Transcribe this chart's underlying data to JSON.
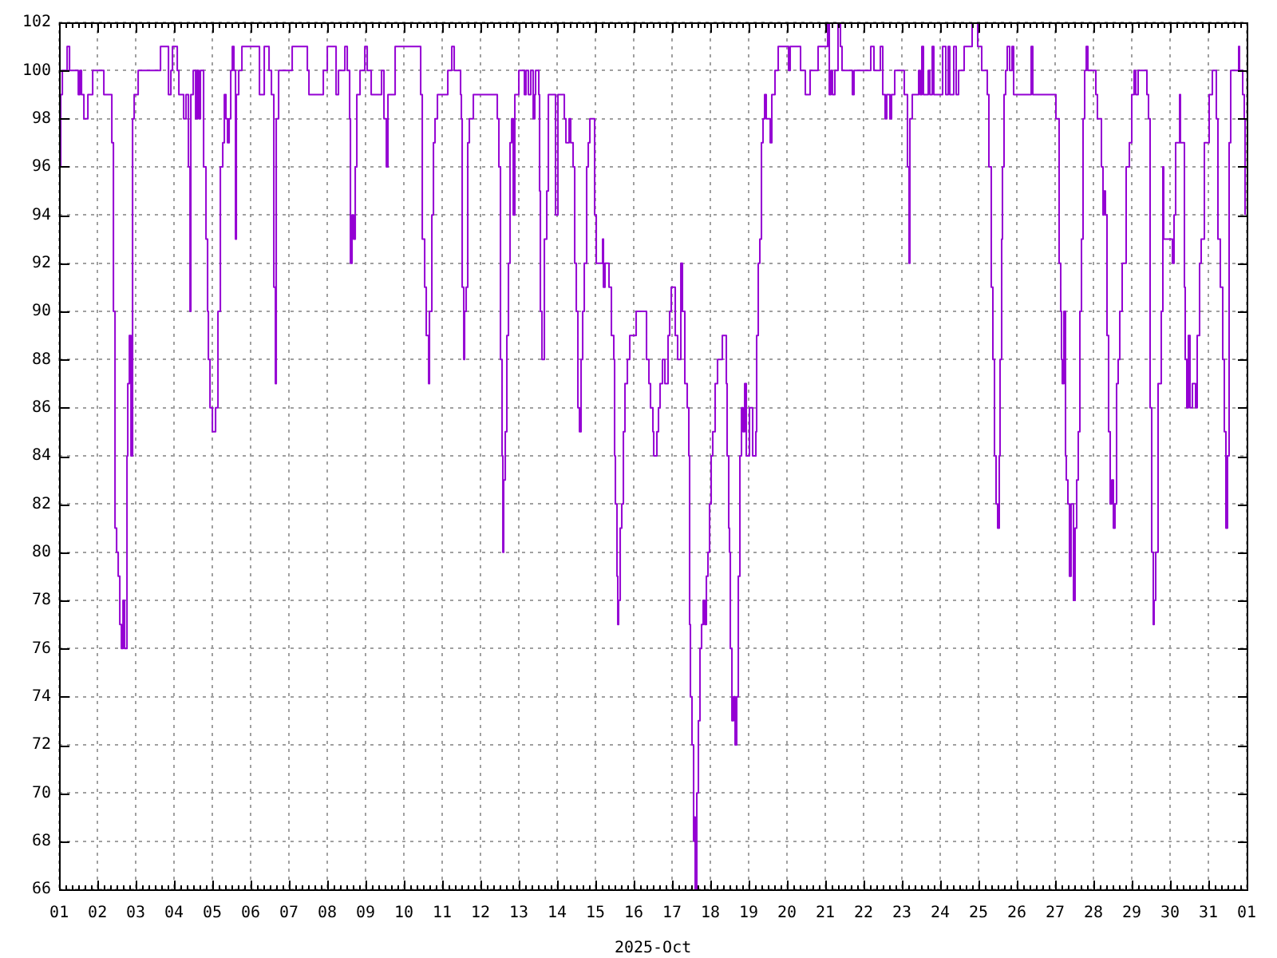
{
  "chart_data": {
    "type": "step",
    "xlabel": "2025-Oct",
    "color": "#9400d3",
    "x": [
      "2025-10-01T00:00",
      "2025-10-01T01:00",
      "2025-10-01T02:00",
      "2025-10-01T05:00",
      "2025-10-01T06:30",
      "2025-10-01T12:00",
      "2025-10-01T13:00",
      "2025-10-01T14:00",
      "2025-10-01T15:30",
      "2025-10-01T18:00",
      "2025-10-01T21:00",
      "2025-10-02T04:00",
      "2025-10-02T09:00",
      "2025-10-02T10:00",
      "2025-10-02T11:00",
      "2025-10-02T12:00",
      "2025-10-02T13:00",
      "2025-10-02T14:00",
      "2025-10-02T15:00",
      "2025-10-02T16:00",
      "2025-10-02T17:00",
      "2025-10-02T18:30",
      "2025-10-02T19:00",
      "2025-10-02T20:00",
      "2025-10-02T21:00",
      "2025-10-02T22:00",
      "2025-10-02T23:00",
      "2025-10-03T01:30",
      "2025-10-03T15:30",
      "2025-10-03T20:30",
      "2025-10-03T22:00",
      "2025-10-03T23:00",
      "2025-10-04T02:00",
      "2025-10-04T03:00",
      "2025-10-04T06:00",
      "2025-10-04T07:30",
      "2025-10-04T09:00",
      "2025-10-04T10:00",
      "2025-10-04T10:30",
      "2025-10-04T12:00",
      "2025-10-04T13:30",
      "2025-10-04T14:30",
      "2025-10-04T15:30",
      "2025-10-04T16:30",
      "2025-10-04T18:30",
      "2025-10-04T20:00",
      "2025-10-04T21:00",
      "2025-10-04T21:30",
      "2025-10-04T22:30",
      "2025-10-05T00:00",
      "2025-10-05T02:00",
      "2025-10-05T03:30",
      "2025-10-05T05:00",
      "2025-10-05T06:30",
      "2025-10-05T07:30",
      "2025-10-05T08:30",
      "2025-10-05T09:30",
      "2025-10-05T10:30",
      "2025-10-05T11:30",
      "2025-10-05T12:30",
      "2025-10-05T13:30",
      "2025-10-05T14:30",
      "2025-10-05T15:00",
      "2025-10-05T16:30",
      "2025-10-05T18:30",
      "2025-10-06T05:30",
      "2025-10-06T08:30",
      "2025-10-06T11:30",
      "2025-10-06T13:00",
      "2025-10-06T14:30",
      "2025-10-06T15:30",
      "2025-10-06T16:00",
      "2025-10-06T17:30",
      "2025-10-07T02:00",
      "2025-10-07T11:30",
      "2025-10-07T12:30",
      "2025-10-07T21:30",
      "2025-10-08T00:00",
      "2025-10-08T05:30",
      "2025-10-08T07:00",
      "2025-10-08T11:00",
      "2025-10-08T12:30",
      "2025-10-08T14:00",
      "2025-10-08T14:30",
      "2025-10-08T15:30",
      "2025-10-08T16:30",
      "2025-10-08T17:30",
      "2025-10-08T18:30",
      "2025-10-08T20:30",
      "2025-10-08T23:30",
      "2025-10-09T01:00",
      "2025-10-09T03:30",
      "2025-10-09T10:00",
      "2025-10-09T11:30",
      "2025-10-09T13:00",
      "2025-10-09T14:00",
      "2025-10-09T18:30",
      "2025-10-10T10:30",
      "2025-10-10T11:30",
      "2025-10-10T13:00",
      "2025-10-10T14:00",
      "2025-10-10T15:30",
      "2025-10-10T16:00",
      "2025-10-10T17:30",
      "2025-10-10T18:30",
      "2025-10-10T19:30",
      "2025-10-10T21:00",
      "2025-10-11T03:30",
      "2025-10-11T06:00",
      "2025-10-11T07:30",
      "2025-10-11T11:30",
      "2025-10-11T12:00",
      "2025-10-11T12:30",
      "2025-10-11T13:30",
      "2025-10-11T14:00",
      "2025-10-11T15:00",
      "2025-10-11T16:00",
      "2025-10-11T17:00",
      "2025-10-11T19:30",
      "2025-10-12T10:30",
      "2025-10-12T11:30",
      "2025-10-12T12:30",
      "2025-10-12T13:30",
      "2025-10-12T14:00",
      "2025-10-12T14:30",
      "2025-10-12T15:30",
      "2025-10-12T16:30",
      "2025-10-12T17:30",
      "2025-10-12T18:30",
      "2025-10-12T19:30",
      "2025-10-12T20:30",
      "2025-10-12T21:30",
      "2025-10-13T00:00",
      "2025-10-13T03:30",
      "2025-10-13T04:30",
      "2025-10-13T06:00",
      "2025-10-13T07:30",
      "2025-10-13T09:00",
      "2025-10-13T10:00",
      "2025-10-13T10:30",
      "2025-10-13T12:30",
      "2025-10-13T13:00",
      "2025-10-13T13:30",
      "2025-10-13T14:30",
      "2025-10-13T16:00",
      "2025-10-13T17:30",
      "2025-10-13T18:30",
      "2025-10-13T23:00",
      "2025-10-14T00:30",
      "2025-10-14T04:30",
      "2025-10-14T05:30",
      "2025-10-14T07:30",
      "2025-10-14T08:30",
      "2025-10-14T10:00",
      "2025-10-14T11:00",
      "2025-10-14T12:00",
      "2025-10-14T13:00",
      "2025-10-14T14:00",
      "2025-10-14T15:00",
      "2025-10-14T16:00",
      "2025-10-14T17:00",
      "2025-10-14T18:30",
      "2025-10-14T19:30",
      "2025-10-14T20:30",
      "2025-10-14T23:30",
      "2025-10-15T00:30",
      "2025-10-15T04:30",
      "2025-10-15T05:00",
      "2025-10-15T06:00",
      "2025-10-15T08:30",
      "2025-10-15T10:00",
      "2025-10-15T11:30",
      "2025-10-15T12:00",
      "2025-10-15T12:30",
      "2025-10-15T13:30",
      "2025-10-15T14:00",
      "2025-10-15T14:30",
      "2025-10-15T15:30",
      "2025-10-15T16:30",
      "2025-10-15T17:30",
      "2025-10-15T18:30",
      "2025-10-15T20:00",
      "2025-10-15T21:30",
      "2025-10-16T01:30",
      "2025-10-16T08:00",
      "2025-10-16T09:30",
      "2025-10-16T10:30",
      "2025-10-16T12:00",
      "2025-10-16T12:30",
      "2025-10-16T14:30",
      "2025-10-16T15:30",
      "2025-10-16T16:30",
      "2025-10-16T18:00",
      "2025-10-16T19:30",
      "2025-10-16T21:30",
      "2025-10-16T22:30",
      "2025-10-16T23:30",
      "2025-10-17T02:00",
      "2025-10-17T03:30",
      "2025-10-17T05:30",
      "2025-10-17T06:30",
      "2025-10-17T08:00",
      "2025-10-17T09:30",
      "2025-10-17T10:30",
      "2025-10-17T11:00",
      "2025-10-17T11:30",
      "2025-10-17T12:30",
      "2025-10-17T13:30",
      "2025-10-17T14:00",
      "2025-10-17T14:30",
      "2025-10-17T15:30",
      "2025-10-17T16:30",
      "2025-10-17T17:30",
      "2025-10-17T18:30",
      "2025-10-17T19:30",
      "2025-10-17T20:30",
      "2025-10-17T21:30",
      "2025-10-17T22:30",
      "2025-10-17T23:30",
      "2025-10-18T00:30",
      "2025-10-18T01:30",
      "2025-10-18T03:00",
      "2025-10-18T04:30",
      "2025-10-18T07:30",
      "2025-10-18T10:00",
      "2025-10-18T10:30",
      "2025-10-18T11:30",
      "2025-10-18T12:00",
      "2025-10-18T12:30",
      "2025-10-18T13:30",
      "2025-10-18T14:30",
      "2025-10-18T15:30",
      "2025-10-18T16:30",
      "2025-10-18T17:30",
      "2025-10-18T18:30",
      "2025-10-18T19:30",
      "2025-10-18T20:30",
      "2025-10-18T21:30",
      "2025-10-18T22:30",
      "2025-10-19T00:30",
      "2025-10-19T02:30",
      "2025-10-19T04:30",
      "2025-10-19T05:00",
      "2025-10-19T06:00",
      "2025-10-19T07:00",
      "2025-10-19T08:00",
      "2025-10-19T09:00",
      "2025-10-19T10:00",
      "2025-10-19T11:00",
      "2025-10-19T13:30",
      "2025-10-19T14:30",
      "2025-10-19T16:30",
      "2025-10-19T18:30",
      "2025-10-20T01:00",
      "2025-10-20T02:00",
      "2025-10-20T08:30",
      "2025-10-20T11:30",
      "2025-10-20T14:30",
      "2025-10-20T19:30",
      "2025-10-21T01:30",
      "2025-10-21T02:30",
      "2025-10-21T03:30",
      "2025-10-21T04:30",
      "2025-10-21T06:00",
      "2025-10-21T08:00",
      "2025-10-21T09:30",
      "2025-10-21T10:30",
      "2025-10-21T17:00",
      "2025-10-21T18:00",
      "2025-10-22T04:30",
      "2025-10-22T06:30",
      "2025-10-22T10:30",
      "2025-10-22T12:00",
      "2025-10-22T13:30",
      "2025-10-22T14:30",
      "2025-10-22T16:30",
      "2025-10-22T17:30",
      "2025-10-22T19:30",
      "2025-10-23T01:30",
      "2025-10-23T03:30",
      "2025-10-23T04:30",
      "2025-10-23T05:00",
      "2025-10-23T06:30",
      "2025-10-23T10:30",
      "2025-10-23T11:30",
      "2025-10-23T12:30",
      "2025-10-23T13:30",
      "2025-10-23T16:30",
      "2025-10-23T17:30",
      "2025-10-23T19:00",
      "2025-10-23T20:00",
      "2025-10-24T01:30",
      "2025-10-24T03:30",
      "2025-10-24T05:00",
      "2025-10-24T06:00",
      "2025-10-24T08:30",
      "2025-10-24T10:00",
      "2025-10-24T11:30",
      "2025-10-24T15:00",
      "2025-10-24T20:00",
      "2025-10-24T23:30",
      "2025-10-25T02:00",
      "2025-10-25T05:30",
      "2025-10-25T06:30",
      "2025-10-25T08:00",
      "2025-10-25T09:00",
      "2025-10-25T10:00",
      "2025-10-25T11:00",
      "2025-10-25T12:00",
      "2025-10-25T13:00",
      "2025-10-25T13:30",
      "2025-10-25T14:30",
      "2025-10-25T15:00",
      "2025-10-25T16:00",
      "2025-10-25T17:00",
      "2025-10-25T18:00",
      "2025-10-25T19:30",
      "2025-10-25T21:00",
      "2025-10-25T22:00",
      "2025-10-26T09:00",
      "2025-10-26T10:00",
      "2025-10-27T00:30",
      "2025-10-27T02:30",
      "2025-10-27T03:30",
      "2025-10-27T04:00",
      "2025-10-27T04:30",
      "2025-10-27T05:30",
      "2025-10-27T06:30",
      "2025-10-27T07:00",
      "2025-10-27T08:00",
      "2025-10-27T09:00",
      "2025-10-27T10:00",
      "2025-10-27T11:30",
      "2025-10-27T12:30",
      "2025-10-27T13:30",
      "2025-10-27T14:30",
      "2025-10-27T15:30",
      "2025-10-27T16:30",
      "2025-10-27T17:30",
      "2025-10-27T18:30",
      "2025-10-27T19:30",
      "2025-10-27T20:30",
      "2025-10-28T01:30",
      "2025-10-28T02:30",
      "2025-10-28T05:00",
      "2025-10-28T06:00",
      "2025-10-28T06:30",
      "2025-10-28T07:30",
      "2025-10-28T08:30",
      "2025-10-28T09:30",
      "2025-10-28T10:30",
      "2025-10-28T11:30",
      "2025-10-28T12:30",
      "2025-10-28T13:30",
      "2025-10-28T14:30",
      "2025-10-28T15:30",
      "2025-10-28T16:30",
      "2025-10-28T18:00",
      "2025-10-28T20:30",
      "2025-10-28T22:30",
      "2025-10-29T00:00",
      "2025-10-29T01:30",
      "2025-10-29T02:30",
      "2025-10-29T04:00",
      "2025-10-29T09:30",
      "2025-10-29T10:30",
      "2025-10-29T11:30",
      "2025-10-29T12:30",
      "2025-10-29T13:30",
      "2025-10-29T14:00",
      "2025-10-29T15:00",
      "2025-10-29T16:30",
      "2025-10-29T18:30",
      "2025-10-29T19:30",
      "2025-10-29T20:00",
      "2025-10-30T01:30",
      "2025-10-30T02:30",
      "2025-10-30T03:30",
      "2025-10-30T06:00",
      "2025-10-30T06:30",
      "2025-10-30T09:00",
      "2025-10-30T09:30",
      "2025-10-30T10:30",
      "2025-10-30T11:30",
      "2025-10-30T12:30",
      "2025-10-30T14:00",
      "2025-10-30T16:00",
      "2025-10-30T17:00",
      "2025-10-30T18:30",
      "2025-10-30T19:30",
      "2025-10-30T21:30",
      "2025-10-31T00:30",
      "2025-10-31T02:30",
      "2025-10-31T05:00",
      "2025-10-31T06:00",
      "2025-10-31T07:30",
      "2025-10-31T09:00",
      "2025-10-31T10:00",
      "2025-10-31T11:00",
      "2025-10-31T12:00",
      "2025-10-31T13:00",
      "2025-10-31T14:00",
      "2025-10-31T19:00",
      "2025-10-31T19:30",
      "2025-10-31T21:30",
      "2025-10-31T22:30",
      "2025-10-31T23:00"
    ],
    "values": [
      96,
      99,
      100,
      101,
      100,
      99,
      100,
      99,
      98,
      99,
      100,
      99,
      97,
      90,
      81,
      80,
      79,
      77,
      76,
      78,
      76,
      84,
      87,
      89,
      84,
      98,
      99,
      100,
      101,
      99,
      100,
      101,
      100,
      99,
      98,
      99,
      96,
      90,
      99,
      100,
      98,
      100,
      98,
      100,
      96,
      93,
      90,
      88,
      86,
      85,
      86,
      90,
      96,
      97,
      99,
      98,
      97,
      98,
      100,
      101,
      100,
      93,
      99,
      100,
      101,
      99,
      101,
      100,
      99,
      91,
      87,
      98,
      100,
      101,
      100,
      99,
      100,
      101,
      99,
      100,
      101,
      100,
      98,
      92,
      94,
      93,
      96,
      99,
      100,
      101,
      100,
      99,
      100,
      98,
      96,
      99,
      101,
      99,
      93,
      91,
      89,
      87,
      90,
      94,
      97,
      98,
      99,
      100,
      101,
      100,
      99,
      98,
      91,
      88,
      90,
      91,
      97,
      98,
      99,
      98,
      96,
      88,
      84,
      80,
      83,
      85,
      89,
      92,
      97,
      98,
      94,
      99,
      100,
      99,
      100,
      99,
      100,
      98,
      99,
      100,
      99,
      95,
      90,
      88,
      93,
      95,
      99,
      94,
      99,
      98,
      97,
      98,
      97,
      96,
      92,
      90,
      86,
      85,
      88,
      90,
      92,
      96,
      97,
      98,
      94,
      92,
      93,
      91,
      92,
      91,
      89,
      88,
      84,
      82,
      79,
      77,
      78,
      81,
      82,
      85,
      87,
      88,
      89,
      90,
      88,
      87,
      86,
      85,
      84,
      85,
      86,
      87,
      88,
      87,
      89,
      90,
      91,
      89,
      88,
      92,
      90,
      87,
      86,
      84,
      77,
      74,
      72,
      68,
      69,
      66,
      70,
      73,
      76,
      77,
      78,
      77,
      79,
      80,
      82,
      84,
      85,
      87,
      88,
      89,
      87,
      84,
      81,
      80,
      76,
      73,
      74,
      72,
      74,
      79,
      84,
      86,
      85,
      87,
      84,
      86,
      84,
      85,
      89,
      92,
      93,
      97,
      98,
      99,
      98,
      97,
      99,
      100,
      101,
      100,
      101,
      100,
      99,
      100,
      101,
      102,
      99,
      100,
      99,
      100,
      102,
      101,
      100,
      99,
      100,
      101,
      100,
      101,
      99,
      98,
      99,
      98,
      99,
      100,
      99,
      96,
      92,
      98,
      99,
      100,
      99,
      101,
      99,
      100,
      99,
      101,
      99,
      101,
      99,
      101,
      99,
      101,
      99,
      100,
      101,
      102,
      101,
      100,
      99,
      96,
      91,
      88,
      84,
      82,
      81,
      84,
      88,
      93,
      96,
      99,
      100,
      101,
      100,
      101,
      99,
      101,
      99,
      98,
      92,
      90,
      88,
      87,
      90,
      84,
      83,
      82,
      79,
      82,
      78,
      81,
      83,
      85,
      90,
      93,
      98,
      100,
      101,
      100,
      99,
      98,
      96,
      94,
      95,
      94,
      89,
      85,
      82,
      83,
      81,
      82,
      87,
      88,
      90,
      92,
      96,
      97,
      99,
      100,
      99,
      100,
      99,
      98,
      86,
      80,
      77,
      78,
      80,
      87,
      90,
      96,
      93,
      92,
      94,
      97,
      99,
      97,
      91,
      88,
      86,
      89,
      86,
      87,
      86,
      89,
      92,
      93,
      97,
      99,
      100,
      98,
      93,
      91,
      88,
      85,
      81,
      84,
      97,
      100,
      101,
      100,
      99,
      98,
      94
    ],
    "xlim": [
      "2025-10-01",
      "2025-11-01"
    ],
    "xticks": [
      {
        "value": "2025-10-01",
        "label": "01"
      },
      {
        "value": "2025-10-01T04:00",
        "label": null
      },
      {
        "value": "2025-10-01T08:00",
        "label": null
      },
      {
        "value": "2025-10-01T12:00",
        "label": null
      },
      {
        "value": "2025-10-01T16:00",
        "label": null
      },
      {
        "value": "2025-10-01T20:00",
        "label": null
      },
      {
        "value": "2025-10-02",
        "label": "02"
      },
      {
        "value": "2025-10-02T04:00",
        "label": null
      },
      {
        "value": "2025-10-02T08:00",
        "label": null
      },
      {
        "value": "2025-10-02T12:00",
        "label": null
      },
      {
        "value": "2025-10-02T16:00",
        "label": null
      },
      {
        "value": "2025-10-02T20:00",
        "label": null
      },
      {
        "value": "2025-10-03",
        "label": "03"
      },
      {
        "value": "2025-10-03T04:00",
        "label": null
      },
      {
        "value": "2025-10-03T08:00",
        "label": null
      },
      {
        "value": "2025-10-03T12:00",
        "label": null
      },
      {
        "value": "2025-10-03T16:00",
        "label": null
      },
      {
        "value": "2025-10-03T20:00",
        "label": null
      },
      {
        "value": "2025-10-04",
        "label": "04"
      },
      {
        "value": "2025-10-04T04:00",
        "label": null
      },
      {
        "value": "2025-10-04T08:00",
        "label": null
      },
      {
        "value": "2025-10-04T12:00",
        "label": null
      },
      {
        "value": "2025-10-04T16:00",
        "label": null
      },
      {
        "value": "2025-10-04T20:00",
        "label": null
      },
      {
        "value": "2025-10-05",
        "label": "05"
      },
      {
        "value": "2025-10-05T04:00",
        "label": null
      },
      {
        "value": "2025-10-05T08:00",
        "label": null
      },
      {
        "value": "2025-10-05T12:00",
        "label": null
      },
      {
        "value": "2025-10-05T16:00",
        "label": null
      },
      {
        "value": "2025-10-05T20:00",
        "label": null
      },
      {
        "value": "2025-10-06",
        "label": "06"
      },
      {
        "value": "2025-10-06T04:00",
        "label": null
      },
      {
        "value": "2025-10-06T08:00",
        "label": null
      },
      {
        "value": "2025-10-06T12:00",
        "label": null
      },
      {
        "value": "2025-10-06T16:00",
        "label": null
      },
      {
        "value": "2025-10-06T20:00",
        "label": null
      },
      {
        "value": "2025-10-07",
        "label": "07"
      },
      {
        "value": "2025-10-07T04:00",
        "label": null
      },
      {
        "value": "2025-10-07T08:00",
        "label": null
      },
      {
        "value": "2025-10-07T12:00",
        "label": null
      },
      {
        "value": "2025-10-07T16:00",
        "label": null
      },
      {
        "value": "2025-10-07T20:00",
        "label": null
      },
      {
        "value": "2025-10-08",
        "label": "08"
      },
      {
        "value": "2025-10-08T04:00",
        "label": null
      },
      {
        "value": "2025-10-08T08:00",
        "label": null
      },
      {
        "value": "2025-10-08T12:00",
        "label": null
      },
      {
        "value": "2025-10-08T16:00",
        "label": null
      },
      {
        "value": "2025-10-08T20:00",
        "label": null
      },
      {
        "value": "2025-10-09",
        "label": "09"
      },
      {
        "value": "2025-10-09T04:00",
        "label": null
      },
      {
        "value": "2025-10-09T08:00",
        "label": null
      },
      {
        "value": "2025-10-09T12:00",
        "label": null
      },
      {
        "value": "2025-10-09T16:00",
        "label": null
      },
      {
        "value": "2025-10-09T20:00",
        "label": null
      },
      {
        "value": "2025-10-10",
        "label": "10"
      },
      {
        "value": "2025-10-10T04:00",
        "label": null
      },
      {
        "value": "2025-10-10T08:00",
        "label": null
      },
      {
        "value": "2025-10-10T12:00",
        "label": null
      },
      {
        "value": "2025-10-10T16:00",
        "label": null
      },
      {
        "value": "2025-10-10T20:00",
        "label": null
      },
      {
        "value": "2025-10-11",
        "label": "11"
      },
      {
        "value": "2025-10-11T04:00",
        "label": null
      },
      {
        "value": "2025-10-11T08:00",
        "label": null
      },
      {
        "value": "2025-10-11T12:00",
        "label": null
      },
      {
        "value": "2025-10-11T16:00",
        "label": null
      },
      {
        "value": "2025-10-11T20:00",
        "label": null
      },
      {
        "value": "2025-10-12",
        "label": "12"
      },
      {
        "value": "2025-10-12T04:00",
        "label": null
      },
      {
        "value": "2025-10-12T08:00",
        "label": null
      },
      {
        "value": "2025-10-12T12:00",
        "label": null
      },
      {
        "value": "2025-10-12T16:00",
        "label": null
      },
      {
        "value": "2025-10-12T20:00",
        "label": null
      },
      {
        "value": "2025-10-13",
        "label": "13"
      },
      {
        "value": "2025-10-13T04:00",
        "label": null
      },
      {
        "value": "2025-10-13T08:00",
        "label": null
      },
      {
        "value": "2025-10-13T12:00",
        "label": null
      },
      {
        "value": "2025-10-13T16:00",
        "label": null
      },
      {
        "value": "2025-10-13T20:00",
        "label": null
      },
      {
        "value": "2025-10-14",
        "label": "14"
      },
      {
        "value": "2025-10-14T04:00",
        "label": null
      },
      {
        "value": "2025-10-14T08:00",
        "label": null
      },
      {
        "value": "2025-10-14T12:00",
        "label": null
      },
      {
        "value": "2025-10-14T16:00",
        "label": null
      },
      {
        "value": "2025-10-14T20:00",
        "label": null
      },
      {
        "value": "2025-10-15",
        "label": "15"
      },
      {
        "value": "2025-10-15T04:00",
        "label": null
      },
      {
        "value": "2025-10-15T08:00",
        "label": null
      },
      {
        "value": "2025-10-15T12:00",
        "label": null
      },
      {
        "value": "2025-10-15T16:00",
        "label": null
      },
      {
        "value": "2025-10-15T20:00",
        "label": null
      },
      {
        "value": "2025-10-16",
        "label": "16"
      },
      {
        "value": "2025-10-16T04:00",
        "label": null
      },
      {
        "value": "2025-10-16T08:00",
        "label": null
      },
      {
        "value": "2025-10-16T12:00",
        "label": null
      },
      {
        "value": "2025-10-16T16:00",
        "label": null
      },
      {
        "value": "2025-10-16T20:00",
        "label": null
      },
      {
        "value": "2025-10-17",
        "label": "17"
      },
      {
        "value": "2025-10-17T04:00",
        "label": null
      },
      {
        "value": "2025-10-17T08:00",
        "label": null
      },
      {
        "value": "2025-10-17T12:00",
        "label": null
      },
      {
        "value": "2025-10-17T16:00",
        "label": null
      },
      {
        "value": "2025-10-17T20:00",
        "label": null
      },
      {
        "value": "2025-10-18",
        "label": "18"
      },
      {
        "value": "2025-10-18T04:00",
        "label": null
      },
      {
        "value": "2025-10-18T08:00",
        "label": null
      },
      {
        "value": "2025-10-18T12:00",
        "label": null
      },
      {
        "value": "2025-10-18T16:00",
        "label": null
      },
      {
        "value": "2025-10-18T20:00",
        "label": null
      },
      {
        "value": "2025-10-19",
        "label": "19"
      },
      {
        "value": "2025-10-19T04:00",
        "label": null
      },
      {
        "value": "2025-10-19T08:00",
        "label": null
      },
      {
        "value": "2025-10-19T12:00",
        "label": null
      },
      {
        "value": "2025-10-19T16:00",
        "label": null
      },
      {
        "value": "2025-10-19T20:00",
        "label": null
      },
      {
        "value": "2025-10-20",
        "label": "20"
      },
      {
        "value": "2025-10-20T04:00",
        "label": null
      },
      {
        "value": "2025-10-20T08:00",
        "label": null
      },
      {
        "value": "2025-10-20T12:00",
        "label": null
      },
      {
        "value": "2025-10-20T16:00",
        "label": null
      },
      {
        "value": "2025-10-20T20:00",
        "label": null
      },
      {
        "value": "2025-10-21",
        "label": "21"
      },
      {
        "value": "2025-10-21T04:00",
        "label": null
      },
      {
        "value": "2025-10-21T08:00",
        "label": null
      },
      {
        "value": "2025-10-21T12:00",
        "label": null
      },
      {
        "value": "2025-10-21T16:00",
        "label": null
      },
      {
        "value": "2025-10-21T20:00",
        "label": null
      },
      {
        "value": "2025-10-22",
        "label": "22"
      },
      {
        "value": "2025-10-22T04:00",
        "label": null
      },
      {
        "value": "2025-10-22T08:00",
        "label": null
      },
      {
        "value": "2025-10-22T12:00",
        "label": null
      },
      {
        "value": "2025-10-22T16:00",
        "label": null
      },
      {
        "value": "2025-10-22T20:00",
        "label": null
      },
      {
        "value": "2025-10-23",
        "label": "23"
      },
      {
        "value": "2025-10-23T04:00",
        "label": null
      },
      {
        "value": "2025-10-23T08:00",
        "label": null
      },
      {
        "value": "2025-10-23T12:00",
        "label": null
      },
      {
        "value": "2025-10-23T16:00",
        "label": null
      },
      {
        "value": "2025-10-23T20:00",
        "label": null
      },
      {
        "value": "2025-10-24",
        "label": "24"
      },
      {
        "value": "2025-10-24T04:00",
        "label": null
      },
      {
        "value": "2025-10-24T08:00",
        "label": null
      },
      {
        "value": "2025-10-24T12:00",
        "label": null
      },
      {
        "value": "2025-10-24T16:00",
        "label": null
      },
      {
        "value": "2025-10-24T20:00",
        "label": null
      },
      {
        "value": "2025-10-25",
        "label": "25"
      },
      {
        "value": "2025-10-25T04:00",
        "label": null
      },
      {
        "value": "2025-10-25T08:00",
        "label": null
      },
      {
        "value": "2025-10-25T12:00",
        "label": null
      },
      {
        "value": "2025-10-25T16:00",
        "label": null
      },
      {
        "value": "2025-10-25T20:00",
        "label": null
      },
      {
        "value": "2025-10-26",
        "label": "26"
      },
      {
        "value": "2025-10-26T04:00",
        "label": null
      },
      {
        "value": "2025-10-26T08:00",
        "label": null
      },
      {
        "value": "2025-10-26T12:00",
        "label": null
      },
      {
        "value": "2025-10-26T16:00",
        "label": null
      },
      {
        "value": "2025-10-26T20:00",
        "label": null
      },
      {
        "value": "2025-10-27",
        "label": "27"
      },
      {
        "value": "2025-10-27T04:00",
        "label": null
      },
      {
        "value": "2025-10-27T08:00",
        "label": null
      },
      {
        "value": "2025-10-27T12:00",
        "label": null
      },
      {
        "value": "2025-10-27T16:00",
        "label": null
      },
      {
        "value": "2025-10-27T20:00",
        "label": null
      },
      {
        "value": "2025-10-28",
        "label": "28"
      },
      {
        "value": "2025-10-28T04:00",
        "label": null
      },
      {
        "value": "2025-10-28T08:00",
        "label": null
      },
      {
        "value": "2025-10-28T12:00",
        "label": null
      },
      {
        "value": "2025-10-28T16:00",
        "label": null
      },
      {
        "value": "2025-10-28T20:00",
        "label": null
      },
      {
        "value": "2025-10-29",
        "label": "29"
      },
      {
        "value": "2025-10-29T04:00",
        "label": null
      },
      {
        "value": "2025-10-29T08:00",
        "label": null
      },
      {
        "value": "2025-10-29T12:00",
        "label": null
      },
      {
        "value": "2025-10-29T16:00",
        "label": null
      },
      {
        "value": "2025-10-29T20:00",
        "label": null
      },
      {
        "value": "2025-10-30",
        "label": "30"
      },
      {
        "value": "2025-10-30T04:00",
        "label": null
      },
      {
        "value": "2025-10-30T08:00",
        "label": null
      },
      {
        "value": "2025-10-30T12:00",
        "label": null
      },
      {
        "value": "2025-10-30T16:00",
        "label": null
      },
      {
        "value": "2025-10-30T20:00",
        "label": null
      },
      {
        "value": "2025-10-31",
        "label": "31"
      },
      {
        "value": "2025-10-31T04:00",
        "label": null
      },
      {
        "value": "2025-10-31T08:00",
        "label": null
      },
      {
        "value": "2025-10-31T12:00",
        "label": null
      },
      {
        "value": "2025-10-31T16:00",
        "label": null
      },
      {
        "value": "2025-10-31T20:00",
        "label": null
      },
      {
        "value": "2025-11-01",
        "label": "01"
      }
    ],
    "ylim": [
      66,
      102
    ],
    "yticks": [
      66,
      68,
      70,
      72,
      74,
      76,
      78,
      80,
      82,
      84,
      86,
      88,
      90,
      92,
      94,
      96,
      98,
      100,
      102
    ],
    "grid": true
  }
}
